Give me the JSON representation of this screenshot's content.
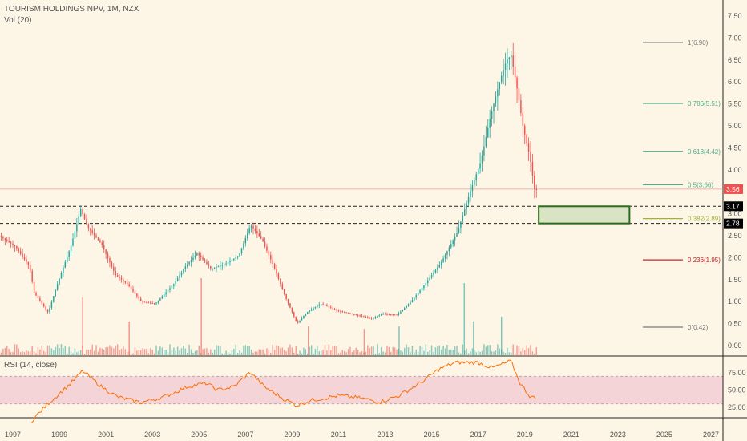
{
  "header": {
    "title": "TOURISM HOLDINGS NPV, 1M, NZX",
    "volume_label": "Vol (20)",
    "rsi_label": "RSI (14, close)"
  },
  "colors": {
    "background": "#fdf5e5",
    "up": "#26a69a",
    "down": "#ef5350",
    "rsi_line": "#ff6d00",
    "rsi_band": "#f0c8d0",
    "zone_fill": "#d8e4c4",
    "zone_border": "#2e6b1e",
    "fib_green": "#4caf8a",
    "fib_red": "#d0202a",
    "fib_grey": "#787878",
    "fib_olive": "#9fb23a"
  },
  "chart_data": {
    "type": "candlestick",
    "price_axis": {
      "min": -0.15,
      "max": 7.75,
      "ticks": [
        "7.50",
        "7.00",
        "6.50",
        "6.00",
        "5.50",
        "5.00",
        "4.50",
        "4.00",
        "3.50",
        "3.00",
        "2.50",
        "2.00",
        "1.50",
        "1.00",
        "0.50",
        "0.00"
      ],
      "badges": [
        {
          "label": "3.56",
          "value": 3.56,
          "bg": "#ef5350",
          "fg": "#ffffff"
        },
        {
          "label": "3.17",
          "value": 3.17,
          "bg": "#000000",
          "fg": "#ffffff"
        },
        {
          "label": "2.78",
          "value": 2.78,
          "bg": "#000000",
          "fg": "#ffffff"
        }
      ]
    },
    "time_axis": {
      "ticks": [
        "1997",
        "1999",
        "2001",
        "2003",
        "2005",
        "2007",
        "2009",
        "2011",
        "2013",
        "2015",
        "2017",
        "2019",
        "2021",
        "2023",
        "2025",
        "2027"
      ]
    },
    "price_path": [
      [
        1996.5,
        2.5
      ],
      [
        1997.2,
        2.25
      ],
      [
        1997.8,
        1.8
      ],
      [
        1998.0,
        1.2
      ],
      [
        1998.6,
        0.75
      ],
      [
        1999.0,
        1.4
      ],
      [
        1999.6,
        2.3
      ],
      [
        2000.0,
        3.1
      ],
      [
        2000.3,
        2.7
      ],
      [
        2000.9,
        2.3
      ],
      [
        2001.5,
        1.6
      ],
      [
        2002.0,
        1.4
      ],
      [
        2002.6,
        1.0
      ],
      [
        2003.2,
        0.95
      ],
      [
        2004.0,
        1.4
      ],
      [
        2004.5,
        1.8
      ],
      [
        2005.0,
        2.1
      ],
      [
        2005.6,
        1.75
      ],
      [
        2006.2,
        1.85
      ],
      [
        2006.8,
        2.05
      ],
      [
        2007.3,
        2.75
      ],
      [
        2007.8,
        2.4
      ],
      [
        2008.3,
        1.8
      ],
      [
        2008.8,
        1.1
      ],
      [
        2009.3,
        0.5
      ],
      [
        2009.7,
        0.75
      ],
      [
        2010.3,
        0.95
      ],
      [
        2011.0,
        0.8
      ],
      [
        2011.8,
        0.7
      ],
      [
        2012.5,
        0.62
      ],
      [
        2013.0,
        0.72
      ],
      [
        2013.6,
        0.7
      ],
      [
        2014.2,
        1.0
      ],
      [
        2014.8,
        1.4
      ],
      [
        2015.5,
        1.9
      ],
      [
        2016.2,
        2.6
      ],
      [
        2016.8,
        3.6
      ],
      [
        2017.2,
        4.2
      ],
      [
        2017.6,
        5.2
      ],
      [
        2018.0,
        6.0
      ],
      [
        2018.3,
        6.5
      ],
      [
        2018.5,
        6.6
      ],
      [
        2018.8,
        5.7
      ],
      [
        2019.0,
        5.0
      ],
      [
        2019.3,
        4.3
      ],
      [
        2019.5,
        3.56
      ]
    ],
    "volume_spikes": [
      {
        "year": 2000.0,
        "value": 1.2
      },
      {
        "year": 2002.0,
        "value": 0.7
      },
      {
        "year": 2005.1,
        "value": 1.6
      },
      {
        "year": 2009.7,
        "value": 0.6
      },
      {
        "year": 2012.1,
        "value": 0.55
      },
      {
        "year": 2013.6,
        "value": 0.6
      },
      {
        "year": 2016.4,
        "value": 1.5
      },
      {
        "year": 2016.8,
        "value": 0.7
      },
      {
        "year": 2018.0,
        "value": 0.8
      }
    ],
    "last_price": 3.56,
    "fib_levels": [
      {
        "ratio": "1",
        "price": 6.9,
        "label": "1(6.90)",
        "color": "#787878"
      },
      {
        "ratio": "0.786",
        "price": 5.51,
        "label": "0.786(5.51)",
        "color": "#4caf8a"
      },
      {
        "ratio": "0.618",
        "price": 4.42,
        "label": "0.618(4.42)",
        "color": "#4caf8a"
      },
      {
        "ratio": "0.5",
        "price": 3.66,
        "label": "0.5(3.66)",
        "color": "#4caf8a"
      },
      {
        "ratio": "0.382",
        "price": 2.89,
        "label": "0.382(2.89)",
        "color": "#9fb23a"
      },
      {
        "ratio": "0.236",
        "price": 1.95,
        "label": "0.236(1.95)",
        "color": "#d0202a"
      },
      {
        "ratio": "0",
        "price": 0.42,
        "label": "0(0.42)",
        "color": "#787878"
      }
    ],
    "support_lines": [
      3.17,
      2.78
    ],
    "zone": {
      "from_year": 2019.6,
      "to_year": 2023.5,
      "low": 2.78,
      "high": 3.17
    },
    "rsi": {
      "min": 0,
      "max": 100,
      "ticks": [
        "75.00",
        "50.00",
        "25.00"
      ],
      "upper_band": 70,
      "lower_band": 30,
      "path": [
        [
          1997.8,
          5
        ],
        [
          1998.5,
          30
        ],
        [
          1999.5,
          60
        ],
        [
          2000.0,
          78
        ],
        [
          2000.8,
          55
        ],
        [
          2001.5,
          40
        ],
        [
          2002.5,
          32
        ],
        [
          2003.5,
          40
        ],
        [
          2004.5,
          55
        ],
        [
          2005.3,
          60
        ],
        [
          2005.8,
          50
        ],
        [
          2006.5,
          55
        ],
        [
          2007.2,
          76
        ],
        [
          2007.8,
          55
        ],
        [
          2008.6,
          38
        ],
        [
          2009.2,
          28
        ],
        [
          2009.8,
          35
        ],
        [
          2011.0,
          42
        ],
        [
          2012.0,
          38
        ],
        [
          2012.8,
          33
        ],
        [
          2013.6,
          42
        ],
        [
          2014.5,
          60
        ],
        [
          2015.3,
          80
        ],
        [
          2016.0,
          90
        ],
        [
          2017.0,
          90
        ],
        [
          2017.6,
          82
        ],
        [
          2018.4,
          92
        ],
        [
          2018.8,
          60
        ],
        [
          2019.2,
          42
        ],
        [
          2019.5,
          37
        ]
      ]
    }
  }
}
